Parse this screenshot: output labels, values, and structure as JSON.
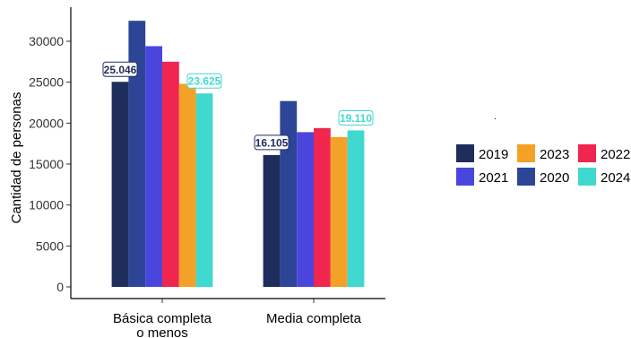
{
  "chart_data": {
    "type": "bar",
    "ylabel": "Cantidad de personas",
    "ylim": [
      0,
      34000
    ],
    "yticks": [
      0,
      5000,
      10000,
      15000,
      20000,
      25000,
      30000
    ],
    "ytick_labels": [
      "0",
      "5000",
      "10000",
      "15000",
      "20000",
      "25000",
      "30000"
    ],
    "categories": [
      [
        "Básica completa",
        "o menos"
      ],
      [
        "Media completa"
      ]
    ],
    "series": [
      {
        "name": "2019",
        "color": "#1f2d5c",
        "values": [
          25046,
          16105
        ]
      },
      {
        "name": "2020",
        "color": "#2c4596",
        "values": [
          32500,
          22700
        ]
      },
      {
        "name": "2021",
        "color": "#4a46dd",
        "values": [
          29400,
          18900
        ]
      },
      {
        "name": "2022",
        "color": "#f0264e",
        "values": [
          27500,
          19400
        ]
      },
      {
        "name": "2023",
        "color": "#f4a227",
        "values": [
          24800,
          18300
        ]
      },
      {
        "name": "2024",
        "color": "#40d9d0",
        "values": [
          23625,
          19110
        ]
      }
    ],
    "data_labels": [
      {
        "series": 0,
        "category": 0,
        "text": "25.046"
      },
      {
        "series": 5,
        "category": 0,
        "text": "23.625"
      },
      {
        "series": 0,
        "category": 1,
        "text": "16.105"
      },
      {
        "series": 5,
        "category": 1,
        "text": "19.110"
      }
    ],
    "legend_order": [
      0,
      2,
      4,
      1,
      3,
      5
    ],
    "legend_position": "right",
    "grid": false
  }
}
